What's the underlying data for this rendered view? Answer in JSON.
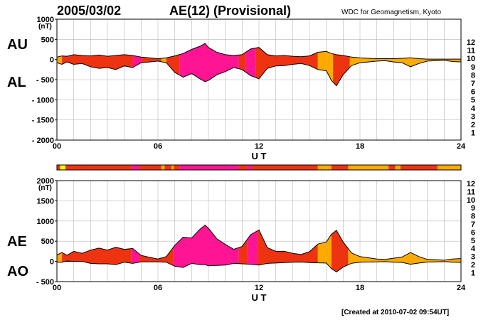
{
  "header": {
    "date": "2005/03/02",
    "title": "AE(12) (Provisional)",
    "source": "WDC for Geomagnetism, Kyoto",
    "created": "[Created at 2010-07-02 09:54UT]"
  },
  "colors": {
    "bar_order": [
      "12",
      "11",
      "10",
      "9",
      "8",
      "7",
      "6",
      "5",
      "4",
      "3",
      "2",
      "1"
    ],
    "map": {
      "12": "#ff1493",
      "11": "#ee3311",
      "10": "#ffaa00",
      "9": "#ffff00",
      "8": "#99ff33",
      "7": "#33dddd",
      "6": "#0066ff",
      "5": "#5500cc",
      "4": "#cc00cc",
      "3": "#000000",
      "2": "#888888",
      "1": "#cccccc"
    }
  },
  "chart_data": [
    {
      "type": "area",
      "name": "AU/AL",
      "panel_labels": [
        "AU",
        "AL"
      ],
      "ylabel": "(nT)",
      "xlabel": "U T",
      "ylim": [
        -2000,
        1000
      ],
      "yticks": [
        1000,
        500,
        0,
        -500,
        -1000,
        -1500,
        -2000
      ],
      "ytick_labels": [
        "1000",
        "500",
        "0",
        "- 500",
        "- 1000",
        "- 1500",
        "- 2000"
      ],
      "xlim": [
        0,
        24
      ],
      "xticks": [
        0,
        6,
        12,
        18,
        24
      ],
      "xtick_labels": [
        "00",
        "06",
        "12",
        "18",
        "24"
      ],
      "grid": true,
      "x": [
        0,
        0.3,
        0.6,
        1.0,
        1.5,
        2.0,
        2.5,
        3.0,
        3.5,
        4.0,
        4.5,
        5.0,
        5.5,
        6.0,
        6.5,
        7.0,
        7.5,
        8.0,
        8.5,
        8.8,
        9.0,
        9.5,
        10.0,
        10.5,
        11.0,
        11.5,
        12.0,
        12.5,
        13.0,
        13.5,
        14.0,
        14.5,
        15.0,
        15.5,
        16.0,
        16.3,
        16.6,
        17.0,
        17.5,
        18.0,
        18.5,
        19.0,
        19.5,
        20.0,
        20.5,
        21.0,
        21.5,
        22.0,
        22.5,
        23.0,
        23.5,
        24.0
      ],
      "series": [
        {
          "name": "AU",
          "values": [
            60,
            90,
            80,
            120,
            100,
            90,
            110,
            80,
            100,
            120,
            100,
            60,
            40,
            20,
            40,
            90,
            150,
            250,
            330,
            400,
            300,
            180,
            120,
            100,
            120,
            260,
            300,
            120,
            90,
            100,
            80,
            70,
            90,
            180,
            200,
            150,
            120,
            100,
            60,
            40,
            30,
            20,
            20,
            20,
            30,
            40,
            20,
            10,
            10,
            10,
            10,
            10
          ]
        },
        {
          "name": "AL",
          "values": [
            -80,
            -120,
            -60,
            -120,
            -100,
            -180,
            -220,
            -200,
            -250,
            -160,
            -200,
            -80,
            -60,
            -40,
            -80,
            -320,
            -440,
            -350,
            -480,
            -550,
            -520,
            -380,
            -300,
            -200,
            -250,
            -400,
            -480,
            -220,
            -160,
            -150,
            -120,
            -100,
            -150,
            -250,
            -280,
            -520,
            -650,
            -380,
            -150,
            -80,
            -60,
            -40,
            -30,
            -60,
            -80,
            -180,
            -100,
            -40,
            -30,
            -20,
            -50,
            -60
          ]
        }
      ],
      "fill_blocks": [
        {
          "from": 0,
          "to": 0.3,
          "count": "10"
        },
        {
          "from": 0.3,
          "to": 4.5,
          "count": "11"
        },
        {
          "from": 4.5,
          "to": 5.0,
          "count": "12"
        },
        {
          "from": 5.0,
          "to": 6.2,
          "count": "11"
        },
        {
          "from": 6.2,
          "to": 6.5,
          "count": "10"
        },
        {
          "from": 6.5,
          "to": 7.3,
          "count": "11"
        },
        {
          "from": 7.3,
          "to": 10.8,
          "count": "12"
        },
        {
          "from": 10.8,
          "to": 11.2,
          "count": "11"
        },
        {
          "from": 11.2,
          "to": 11.8,
          "count": "12"
        },
        {
          "from": 11.8,
          "to": 15.5,
          "count": "11"
        },
        {
          "from": 15.5,
          "to": 16.4,
          "count": "10"
        },
        {
          "from": 16.4,
          "to": 17.4,
          "count": "11"
        },
        {
          "from": 17.4,
          "to": 24.0,
          "count": "10"
        }
      ]
    },
    {
      "type": "area",
      "name": "AE/AO",
      "panel_labels": [
        "AE",
        "AO"
      ],
      "ylabel": "(nT)",
      "xlabel": "U T",
      "ylim": [
        -500,
        2000
      ],
      "yticks": [
        2000,
        1500,
        1000,
        500,
        0,
        -500
      ],
      "ytick_labels": [
        "2000",
        "1500",
        "1000",
        "500",
        "0",
        "- 500"
      ],
      "xlim": [
        0,
        24
      ],
      "xticks": [
        0,
        6,
        12,
        18,
        24
      ],
      "xtick_labels": [
        "00",
        "06",
        "12",
        "18",
        "24"
      ],
      "grid": true,
      "x": [
        0,
        0.3,
        0.6,
        1.0,
        1.5,
        2.0,
        2.5,
        3.0,
        3.5,
        4.0,
        4.5,
        5.0,
        5.5,
        6.0,
        6.5,
        7.0,
        7.5,
        8.0,
        8.5,
        8.8,
        9.0,
        9.5,
        10.0,
        10.5,
        11.0,
        11.5,
        12.0,
        12.5,
        13.0,
        13.5,
        14.0,
        14.5,
        15.0,
        15.5,
        16.0,
        16.3,
        16.6,
        17.0,
        17.5,
        18.0,
        18.5,
        19.0,
        19.5,
        20.0,
        20.5,
        21.0,
        21.5,
        22.0,
        22.5,
        23.0,
        23.5,
        24.0
      ],
      "series": [
        {
          "name": "AE",
          "values": [
            160,
            220,
            150,
            250,
            200,
            280,
            330,
            280,
            350,
            300,
            320,
            150,
            100,
            60,
            120,
            400,
            600,
            580,
            800,
            900,
            820,
            560,
            420,
            300,
            370,
            660,
            780,
            340,
            250,
            250,
            200,
            170,
            240,
            430,
            480,
            670,
            770,
            480,
            210,
            120,
            90,
            60,
            50,
            80,
            110,
            220,
            120,
            50,
            40,
            30,
            60,
            70
          ]
        },
        {
          "name": "AO",
          "values": [
            -20,
            -20,
            10,
            0,
            0,
            -50,
            -60,
            -60,
            -80,
            -20,
            -50,
            -10,
            -10,
            -10,
            -20,
            -120,
            -150,
            -50,
            -80,
            -80,
            -110,
            -100,
            -90,
            -50,
            -60,
            -70,
            -90,
            -50,
            -40,
            -30,
            -20,
            -15,
            -30,
            -35,
            -40,
            -180,
            -260,
            -140,
            -45,
            -20,
            -15,
            -10,
            -5,
            -20,
            -25,
            -70,
            -40,
            -15,
            -10,
            -5,
            -20,
            -25
          ]
        }
      ],
      "fill_blocks": [
        {
          "from": 0,
          "to": 0.3,
          "count": "10"
        },
        {
          "from": 0.3,
          "to": 4.4,
          "count": "11"
        },
        {
          "from": 4.4,
          "to": 4.9,
          "count": "12"
        },
        {
          "from": 4.9,
          "to": 6.9,
          "count": "11"
        },
        {
          "from": 6.9,
          "to": 10.8,
          "count": "12"
        },
        {
          "from": 10.8,
          "to": 11.3,
          "count": "11"
        },
        {
          "from": 11.3,
          "to": 11.9,
          "count": "12"
        },
        {
          "from": 11.9,
          "to": 15.5,
          "count": "11"
        },
        {
          "from": 15.5,
          "to": 16.3,
          "count": "10"
        },
        {
          "from": 16.3,
          "to": 17.3,
          "count": "11"
        },
        {
          "from": 17.3,
          "to": 24.0,
          "count": "10"
        }
      ]
    }
  ],
  "station_count_bar": [
    {
      "from": 0.0,
      "to": 0.2,
      "count": "11"
    },
    {
      "from": 0.2,
      "to": 0.5,
      "count": "9"
    },
    {
      "from": 0.5,
      "to": 4.4,
      "count": "11"
    },
    {
      "from": 4.4,
      "to": 4.9,
      "count": "12"
    },
    {
      "from": 4.9,
      "to": 6.2,
      "count": "11"
    },
    {
      "from": 6.2,
      "to": 6.4,
      "count": "10"
    },
    {
      "from": 6.4,
      "to": 6.8,
      "count": "11"
    },
    {
      "from": 6.8,
      "to": 6.95,
      "count": "10"
    },
    {
      "from": 6.95,
      "to": 7.3,
      "count": "11"
    },
    {
      "from": 7.3,
      "to": 10.8,
      "count": "12"
    },
    {
      "from": 10.8,
      "to": 11.3,
      "count": "11"
    },
    {
      "from": 11.3,
      "to": 11.6,
      "count": "12"
    },
    {
      "from": 11.6,
      "to": 15.5,
      "count": "11"
    },
    {
      "from": 15.5,
      "to": 16.3,
      "count": "10"
    },
    {
      "from": 16.3,
      "to": 17.3,
      "count": "11"
    },
    {
      "from": 17.3,
      "to": 19.7,
      "count": "10"
    },
    {
      "from": 19.7,
      "to": 20.1,
      "count": "11"
    },
    {
      "from": 20.1,
      "to": 20.4,
      "count": "10"
    },
    {
      "from": 20.4,
      "to": 22.6,
      "count": "11"
    },
    {
      "from": 22.6,
      "to": 24.0,
      "count": "10"
    }
  ]
}
